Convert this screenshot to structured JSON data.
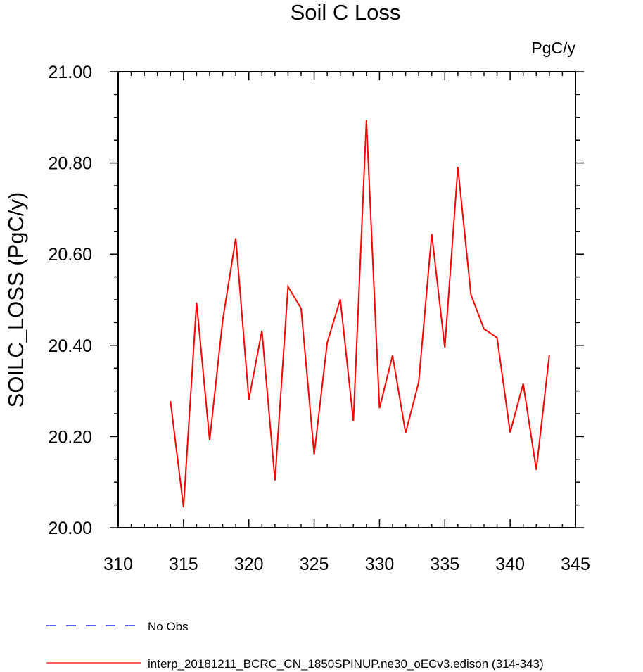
{
  "chart_data": {
    "type": "line",
    "title": "Soil C Loss",
    "units_label": "PgC/y",
    "xlabel": "",
    "ylabel": "SOILC_LOSS  (PgC/y)",
    "xlim": [
      310,
      345
    ],
    "ylim": [
      20.0,
      21.0
    ],
    "x_ticks": [
      310,
      315,
      320,
      325,
      330,
      335,
      340,
      345
    ],
    "x_tick_labels": [
      "310",
      "315",
      "320",
      "325",
      "330",
      "335",
      "340",
      "345"
    ],
    "y_ticks": [
      20.0,
      20.2,
      20.4,
      20.6,
      20.8,
      21.0
    ],
    "y_tick_labels": [
      "20.00",
      "20.20",
      "20.40",
      "20.60",
      "20.80",
      "21.00"
    ],
    "grid": false,
    "legend_position": "bottom-left",
    "x": [
      314,
      315,
      316,
      317,
      318,
      319,
      320,
      321,
      322,
      323,
      324,
      325,
      326,
      327,
      328,
      329,
      330,
      331,
      332,
      333,
      334,
      335,
      336,
      337,
      338,
      339,
      340,
      341,
      342,
      343
    ],
    "series": [
      {
        "name": "interp_20181211_BCRC_CN_1850SPINUP.ne30_oECv3.edison (314-343)",
        "color": "#ff0000",
        "style": "solid",
        "values": [
          20.278,
          20.045,
          20.494,
          20.192,
          20.455,
          20.635,
          20.281,
          20.432,
          20.104,
          20.529,
          20.481,
          20.161,
          20.406,
          20.501,
          20.234,
          20.894,
          20.262,
          20.378,
          20.208,
          20.319,
          20.644,
          20.395,
          20.791,
          20.511,
          20.436,
          20.417,
          20.209,
          20.316,
          20.127,
          20.379
        ]
      }
    ],
    "legend": [
      {
        "label": "No Obs",
        "color": "#0000ff",
        "style": "dashed"
      },
      {
        "label": "interp_20181211_BCRC_CN_1850SPINUP.ne30_oECv3.edison (314-343)",
        "color": "#ff0000",
        "style": "solid"
      }
    ]
  }
}
